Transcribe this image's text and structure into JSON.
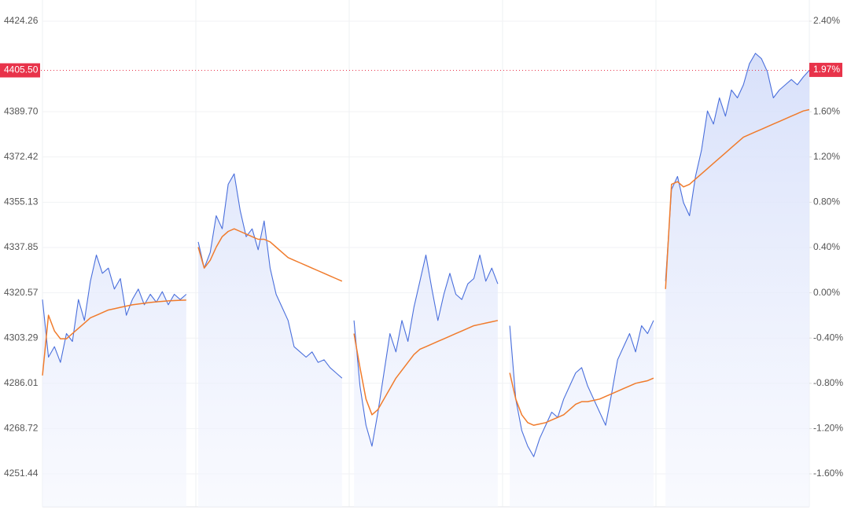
{
  "chart_data": {
    "type": "line",
    "series": [
      {
        "name": "Price",
        "color": "#4a6fdc",
        "values": [
          4318,
          4296,
          4300,
          4294,
          4305,
          4302,
          4318,
          4310,
          4325,
          4335,
          4328,
          4330,
          4322,
          4326,
          4312,
          4318,
          4322,
          4316,
          4320,
          4317,
          4321,
          4316,
          4320,
          4318,
          4320,
          null,
          4340,
          4330,
          4336,
          4350,
          4345,
          4362,
          4366,
          4352,
          4342,
          4345,
          4337,
          4348,
          4330,
          4320,
          4315,
          4310,
          4300,
          4298,
          4296,
          4298,
          4294,
          4295,
          4292,
          4290,
          4288,
          null,
          4310,
          4285,
          4270,
          4262,
          4275,
          4290,
          4305,
          4298,
          4310,
          4302,
          4315,
          4325,
          4335,
          4322,
          4310,
          4320,
          4328,
          4320,
          4318,
          4324,
          4326,
          4335,
          4325,
          4330,
          4324,
          null,
          4308,
          4280,
          4268,
          4262,
          4258,
          4265,
          4270,
          4275,
          4273,
          4280,
          4285,
          4290,
          4292,
          4285,
          4280,
          4275,
          4270,
          4282,
          4295,
          4300,
          4305,
          4298,
          4308,
          4305,
          4310,
          null,
          4325,
          4360,
          4365,
          4355,
          4350,
          4365,
          4375,
          4390,
          4385,
          4395,
          4388,
          4398,
          4395,
          4400,
          4408,
          4412,
          4410,
          4405,
          4395,
          4398,
          4400,
          4402,
          4400,
          4403,
          4405.5
        ]
      },
      {
        "name": "Average",
        "color": "#f07b2c",
        "values": [
          4289,
          4312,
          4306,
          4303,
          4303,
          4305,
          4307,
          4309,
          4311,
          4312,
          4313,
          4314,
          4314.5,
          4315,
          4315.5,
          4316,
          4316.3,
          4316.6,
          4316.9,
          4317.1,
          4317.3,
          4317.5,
          4317.6,
          4317.7,
          4317.8,
          null,
          4338,
          4330,
          4333,
          4338,
          4342,
          4344,
          4345,
          4344,
          4343,
          4342,
          4341,
          4341,
          4340,
          4338,
          4336,
          4334,
          4333,
          4332,
          4331,
          4330,
          4329,
          4328,
          4327,
          4326,
          4325,
          null,
          4305,
          4292,
          4280,
          4274,
          4276,
          4280,
          4284,
          4288,
          4291,
          4294,
          4297,
          4299,
          4300,
          4301,
          4302,
          4303,
          4304,
          4305,
          4306,
          4307,
          4308,
          4308.5,
          4309,
          4309.5,
          4310,
          null,
          4290,
          4280,
          4274,
          4271,
          4270,
          4270.5,
          4271,
          4272,
          4273,
          4274,
          4276,
          4278,
          4279,
          4279,
          4279.5,
          4280,
          4281,
          4282,
          4283,
          4284,
          4285,
          4286,
          4286.5,
          4287,
          4288,
          null,
          4322,
          4362,
          4363,
          4361,
          4362,
          4364,
          4366,
          4368,
          4370,
          4372,
          4374,
          4376,
          4378,
          4380,
          4381,
          4382,
          4383,
          4384,
          4385,
          4386,
          4387,
          4388,
          4389,
          4390,
          4390.5
        ]
      }
    ],
    "ylim": [
      4238.84,
      4432.36
    ],
    "yticks": [
      4424.26,
      {
        "value": 4389.7,
        "label": "4389.70"
      },
      4372.42,
      4355.13,
      4337.85,
      4320.57,
      4303.29,
      4286.01,
      4268.72,
      4251.44
    ],
    "y2lim": [
      -1.8917,
      2.5875
    ],
    "y2ticks": [
      {
        "value": 2.4,
        "label": "2.40%"
      },
      {
        "value": 1.6,
        "label": "1.60%"
      },
      {
        "value": 1.2,
        "label": "1.20%"
      },
      {
        "value": 0.8,
        "label": "0.80%"
      },
      {
        "value": 0.4,
        "label": "0.40%"
      },
      {
        "value": 0,
        "label": "0.00%"
      },
      {
        "value": -0.4,
        "label": "-0.40%"
      },
      {
        "value": -0.8,
        "label": "-0.80%"
      },
      {
        "value": -1.2,
        "label": "-1.20%"
      },
      {
        "value": -1.6,
        "label": "-1.60%"
      }
    ],
    "last_price": {
      "value": 4405.5,
      "label": "4405.50"
    },
    "last_change": {
      "value": 1.97,
      "label": "1.97%"
    },
    "marker_color": "#e8334a",
    "grid": true
  }
}
